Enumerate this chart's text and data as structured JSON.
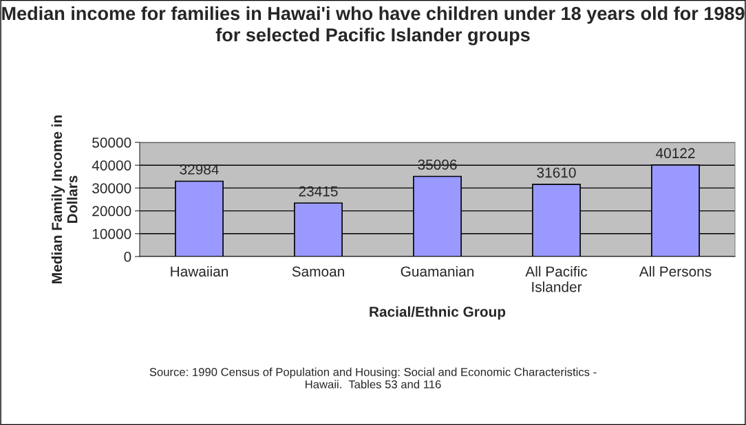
{
  "chart_data": {
    "type": "bar",
    "title": "Median income for families in Hawai'i who have children under 18 years old for 1989 for selected Pacific Islander groups",
    "xlabel": "Racial/Ethnic Group",
    "ylabel": "Median Family Income in\nDollars",
    "categories": [
      "Hawaiian",
      "Samoan",
      "Guamanian",
      "All Pacific\nIslander",
      "All Persons"
    ],
    "values": [
      32984,
      23415,
      35096,
      31610,
      40122
    ],
    "color": "#9999ff",
    "ylim": [
      0,
      50000
    ],
    "yticks": [
      0,
      10000,
      20000,
      30000,
      40000,
      50000
    ],
    "grid": "y",
    "data_labels": true,
    "legend": false,
    "annotations": [
      "Source: 1990 Census of Population and Housing: Social and Economic Characteristics -\nHawaii.  Tables 53 and 116"
    ]
  }
}
